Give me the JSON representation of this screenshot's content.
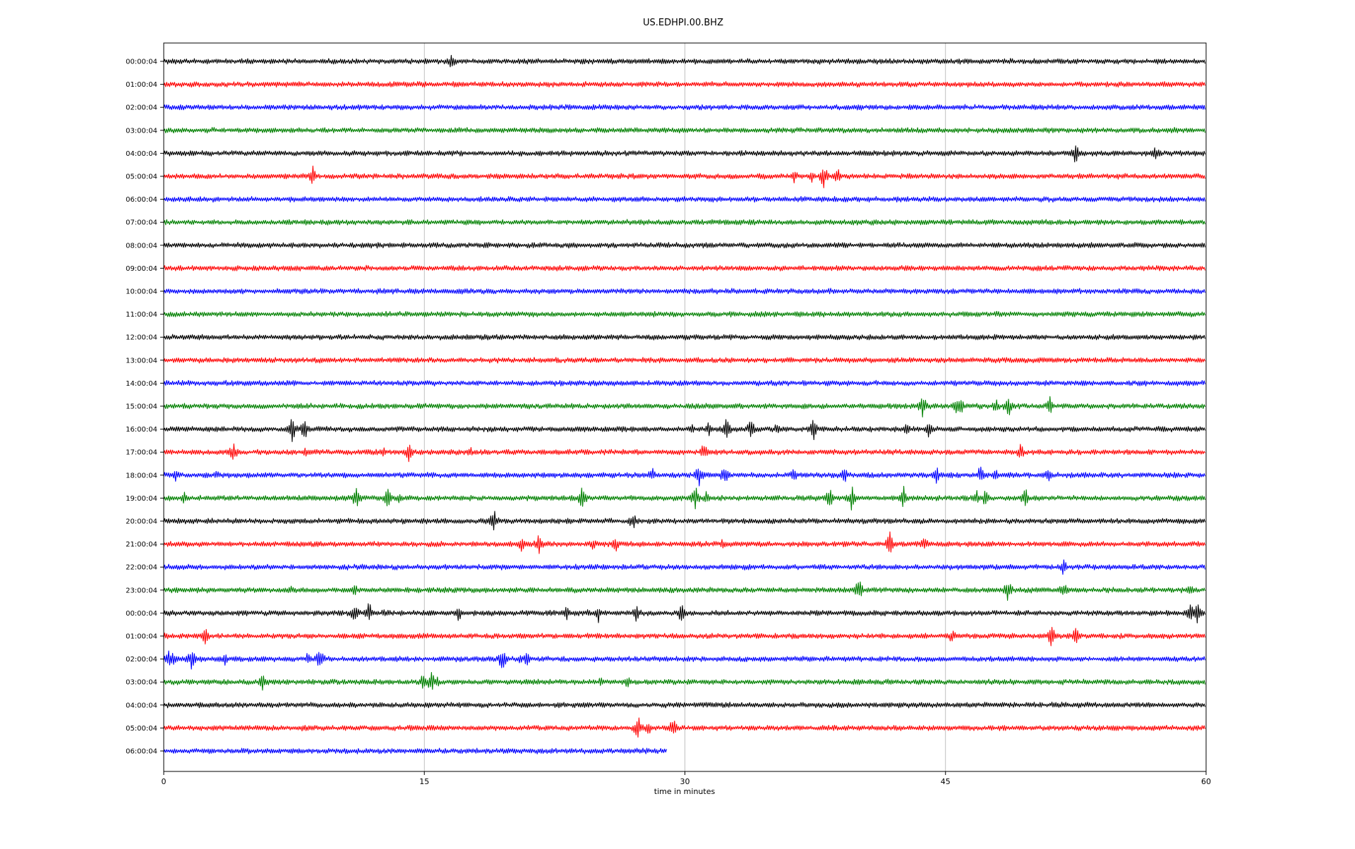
{
  "chart_data": {
    "type": "line",
    "title": "US.EDHPI.00.BHZ",
    "xlabel": "time in minutes",
    "ylabel": "",
    "xlim": [
      0,
      60
    ],
    "x_ticks": [
      0,
      15,
      30,
      45,
      60
    ],
    "grid": "vertical at 15-minute ticks",
    "legend": "none",
    "color_cycle": [
      "#000000",
      "#ff0000",
      "#0000ff",
      "#008000"
    ],
    "trace_labels": [
      "00:00:04",
      "01:00:04",
      "02:00:04",
      "03:00:04",
      "04:00:04",
      "05:00:04",
      "06:00:04",
      "07:00:04",
      "08:00:04",
      "09:00:04",
      "10:00:04",
      "11:00:04",
      "12:00:04",
      "13:00:04",
      "14:00:04",
      "15:00:04",
      "16:00:04",
      "17:00:04",
      "18:00:04",
      "19:00:04",
      "20:00:04",
      "21:00:04",
      "22:00:04",
      "23:00:04",
      "00:00:04",
      "01:00:04",
      "02:00:04",
      "03:00:04",
      "04:00:04",
      "05:00:04",
      "06:00:04"
    ],
    "last_trace_end_minute": 29,
    "events": [
      {
        "trace": 0,
        "minutes": [
          16.6
        ]
      },
      {
        "trace": 4,
        "minutes": [
          52.5,
          57.1
        ]
      },
      {
        "trace": 5,
        "minutes": [
          8.6,
          36.3,
          37.3,
          38.0,
          38.8
        ]
      },
      {
        "trace": 15,
        "minutes": [
          43.7,
          45.6,
          45.8,
          47.9,
          48.6,
          51.0
        ]
      },
      {
        "trace": 16,
        "minutes": [
          7.4,
          8.2,
          8.1,
          30.4,
          31.4,
          32.4,
          33.8,
          35.3,
          37.4,
          42.8,
          44.1
        ]
      },
      {
        "trace": 17,
        "minutes": [
          4.0,
          8.2,
          12.7,
          14.1,
          17.6,
          31.1,
          49.3
        ]
      },
      {
        "trace": 18,
        "minutes": [
          0.7,
          3.1,
          28.1,
          30.8,
          32.3,
          36.3,
          39.2,
          44.5,
          47.0,
          47.9,
          50.9
        ]
      },
      {
        "trace": 19,
        "minutes": [
          1.2,
          11.1,
          12.9,
          13.5,
          24.1,
          30.6,
          31.2,
          38.3,
          39.6,
          42.6,
          46.8,
          47.3,
          49.6
        ]
      },
      {
        "trace": 20,
        "minutes": [
          19.0,
          27.0
        ]
      },
      {
        "trace": 21,
        "minutes": [
          20.6,
          21.6,
          24.7,
          26.0,
          32.2,
          41.8,
          43.8
        ]
      },
      {
        "trace": 22,
        "minutes": [
          51.8
        ]
      },
      {
        "trace": 23,
        "minutes": [
          7.3,
          11.0,
          40.0,
          48.6,
          51.8,
          59.1
        ]
      },
      {
        "trace": 24,
        "minutes": [
          11.0,
          11.8,
          12.7,
          17.0,
          23.2,
          24.4,
          25.0,
          27.2,
          29.8,
          59.1,
          59.5
        ]
      },
      {
        "trace": 25,
        "minutes": [
          0.0,
          2.4,
          45.4,
          51.1,
          52.5
        ]
      },
      {
        "trace": 26,
        "minutes": [
          0.3,
          0.5,
          1.6,
          3.5,
          8.3,
          9.0,
          19.5,
          20.5,
          20.9
        ]
      },
      {
        "trace": 27,
        "minutes": [
          5.7,
          14.9,
          15.4,
          15.7,
          25.2,
          26.7
        ]
      },
      {
        "trace": 29,
        "minutes": [
          14.3,
          27.3,
          27.9,
          29.3
        ]
      }
    ]
  }
}
